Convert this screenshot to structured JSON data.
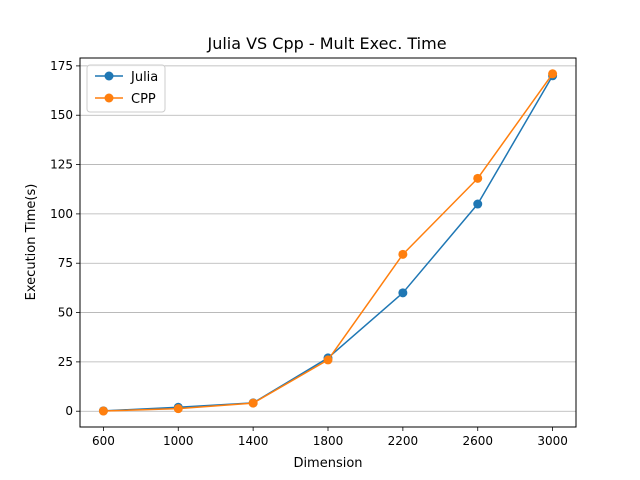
{
  "chart_data": {
    "type": "line",
    "title": "Julia VS Cpp - Mult Exec. Time",
    "xlabel": "Dimension",
    "ylabel": "Execution Time(s)",
    "x": [
      600,
      1000,
      1400,
      1800,
      2200,
      2600,
      3000
    ],
    "xticks": [
      600,
      1000,
      1400,
      1800,
      2200,
      2600,
      3000
    ],
    "yticks": [
      0,
      25,
      50,
      75,
      100,
      125,
      150,
      175
    ],
    "xlim": [
      475,
      3125
    ],
    "ylim": [
      -8,
      179
    ],
    "grid": "horizontal",
    "legend_position": "top-left",
    "series": [
      {
        "name": "Julia",
        "color": "#1f77b4",
        "values": [
          0.2,
          2,
          4.2,
          27,
          60,
          105,
          170
        ]
      },
      {
        "name": "CPP",
        "color": "#ff7f0e",
        "values": [
          0.1,
          1.3,
          4.1,
          26,
          79.5,
          118,
          171
        ]
      }
    ]
  }
}
